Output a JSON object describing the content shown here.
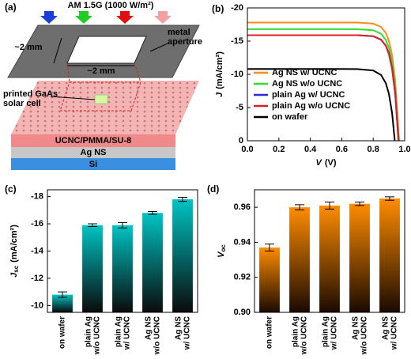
{
  "diagram": {
    "label": "(a)",
    "illumination": "AM 1.5G (1000 W/m²)",
    "aperture": "metal\naperture",
    "width_left": "~2 mm",
    "width_bottom": "~2 mm",
    "cell": "printed GaAs\nsolar cell",
    "layer_top": "UCNC/PMMA/SU-8",
    "layer_mid": "Ag NS",
    "layer_bottom": "Si"
  },
  "chart_data": [
    {
      "type": "line",
      "label": "(b)",
      "xlabel": {
        "main": "V",
        "unit": "(V)"
      },
      "ylabel": {
        "main": "J",
        "unit": "(mA/cm²)"
      },
      "xlim": [
        0,
        1.0
      ],
      "xticks": [
        {
          "value": 0,
          "label": "0.0"
        },
        0.2,
        0.4,
        0.6,
        0.8,
        {
          "value": 1.0,
          "label": "1.0"
        }
      ],
      "ylim": [
        0,
        -20
      ],
      "yticks": [
        -20,
        -15,
        -10,
        -5,
        0
      ],
      "legend": "lower left",
      "series": [
        {
          "name": "Ag NS w/ UCNC",
          "color": "#ff8c1a",
          "x": [
            0,
            0.2,
            0.4,
            0.6,
            0.7,
            0.8,
            0.85,
            0.88,
            0.9,
            0.92,
            0.94,
            0.965
          ],
          "values": [
            -17.8,
            -17.8,
            -17.8,
            -17.8,
            -17.79,
            -17.64,
            -17.14,
            -16.23,
            -15.02,
            -12.89,
            -9.08,
            0
          ]
        },
        {
          "name": "Ag NS w/o UCNC",
          "color": "#33dd33",
          "x": [
            0,
            0.2,
            0.4,
            0.6,
            0.7,
            0.8,
            0.85,
            0.88,
            0.9,
            0.92,
            0.94,
            0.962
          ],
          "values": [
            -16.8,
            -16.8,
            -16.8,
            -16.8,
            -16.79,
            -16.64,
            -16.11,
            -15.19,
            -13.94,
            -11.76,
            -7.9,
            0
          ]
        },
        {
          "name": "plain Ag w/ UCNC",
          "color": "#2a2ae0",
          "x": [
            0,
            0.2,
            0.4,
            0.6,
            0.7,
            0.8,
            0.85,
            0.88,
            0.9,
            0.92,
            0.94,
            0.961
          ],
          "values": [
            -15.9,
            -15.9,
            -15.9,
            -15.9,
            -15.89,
            -15.74,
            -15.23,
            -14.33,
            -13.12,
            -10.97,
            -7.16,
            0
          ]
        },
        {
          "name": "plain Ag w/o UCNC",
          "color": "#e02020",
          "x": [
            0,
            0.2,
            0.4,
            0.6,
            0.7,
            0.8,
            0.85,
            0.88,
            0.9,
            0.92,
            0.94,
            0.96
          ],
          "values": [
            -15.9,
            -15.9,
            -15.9,
            -15.9,
            -15.89,
            -15.73,
            -15.2,
            -14.28,
            -13.0,
            -10.8,
            -6.9,
            0
          ]
        },
        {
          "name": "on wafer",
          "color": "#000000",
          "x": [
            0,
            0.2,
            0.4,
            0.6,
            0.7,
            0.8,
            0.85,
            0.88,
            0.9,
            0.92,
            0.937
          ],
          "values": [
            -10.8,
            -10.8,
            -10.8,
            -10.8,
            -10.79,
            -10.58,
            -9.9,
            -8.68,
            -7.05,
            -4.16,
            0
          ]
        }
      ]
    },
    {
      "type": "bar",
      "label": "(c)",
      "ylabel": {
        "main": "J",
        "sub": "sc",
        "unit": "(mA/cm²)"
      },
      "categories": [
        "on wafer",
        "plain Ag\nw/o UCNC",
        "plain Ag\nw/ UCNC",
        "Ag NS\nw/o UCNC",
        "Ag NS\nw/ UCNC"
      ],
      "values": [
        -10.8,
        -15.9,
        -15.9,
        -16.8,
        -17.8
      ],
      "errors": [
        0.2,
        0.1,
        0.2,
        0.1,
        0.15
      ],
      "ylim": [
        -9.5,
        -18.5
      ],
      "yticks": [
        -10,
        -12,
        -14,
        -16,
        -18
      ],
      "color": "#00c4c4",
      "gradient_end": "#0a0a0a"
    },
    {
      "type": "bar",
      "label": "(d)",
      "ylabel": {
        "main": "V",
        "sub": "oc"
      },
      "categories": [
        "on wafer",
        "plain Ag\nw/o UCNC",
        "plain Ag\nw/ UCNC",
        "Ag NS\nw/o UCNC",
        "Ag NS\nw/ UCNC"
      ],
      "values": [
        0.937,
        0.96,
        0.961,
        0.962,
        0.965
      ],
      "errors": [
        0.002,
        0.0015,
        0.002,
        0.001,
        0.001
      ],
      "ylim": [
        0.9,
        0.97
      ],
      "yticks": [
        {
          "value": 0.9,
          "label": "0.90"
        },
        0.92,
        0.94,
        0.96
      ],
      "color": "#ff8c00",
      "gradient_end": "#1a0a00"
    }
  ]
}
